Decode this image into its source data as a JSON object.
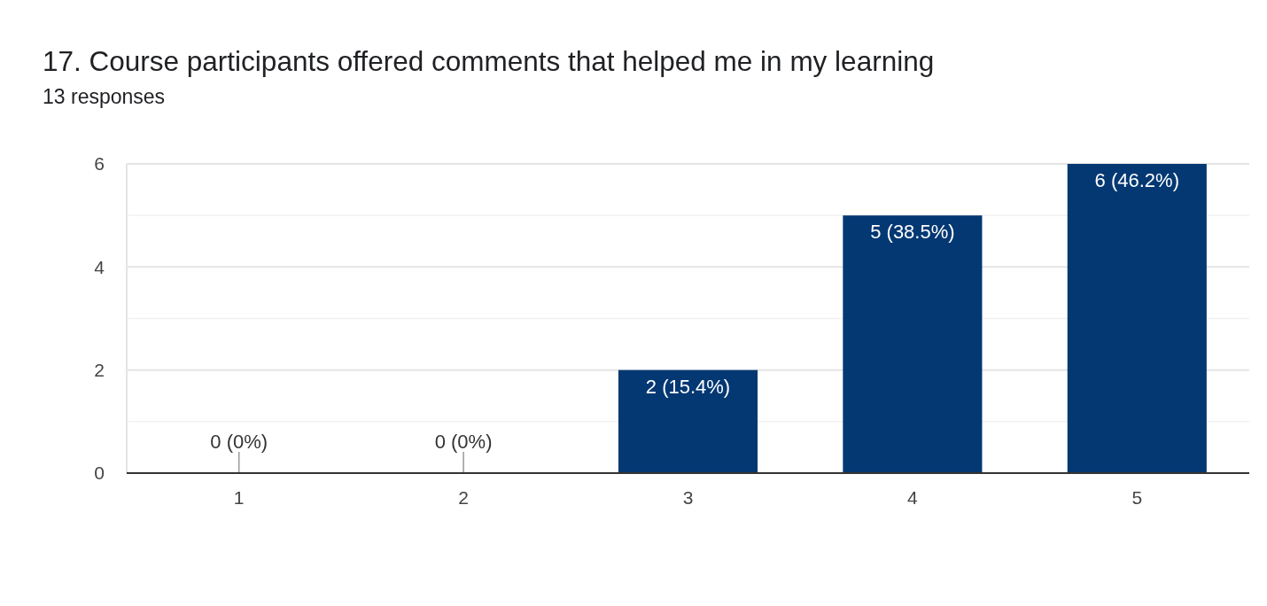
{
  "chart_data": {
    "type": "bar",
    "title": "17. Course participants offered comments that helped me in my learning",
    "subtitle": "13 responses",
    "categories": [
      "1",
      "2",
      "3",
      "4",
      "5"
    ],
    "values": [
      0,
      0,
      2,
      5,
      6
    ],
    "color": "#033873",
    "value_labels": [
      "0 (0%)",
      "0 (0%)",
      "2 (15.4%)",
      "5 (38.5%)",
      "6 (46.2%)"
    ],
    "ylim": [
      0,
      6
    ],
    "yticks": [
      0,
      {
        "value": 1,
        "label": null
      },
      2,
      {
        "value": 3,
        "label": null
      },
      4,
      {
        "value": 5,
        "label": null
      },
      6
    ],
    "grid": true
  }
}
